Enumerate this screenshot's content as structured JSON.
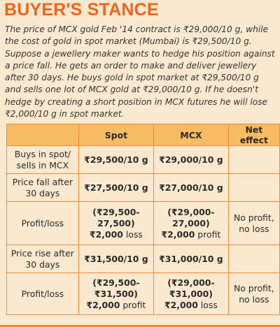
{
  "title": "BUYER'S STANCE",
  "intro": "The price of MCX gold Feb '14 contract is ₹29,000/10 g, while the cost of gold in spot market (Mumbai) is ₹29,500/10 g. Suppose a jewellery maker wants to hedge his position against a price fall. He gets an order to make and deliver jewellery after 30 days. He buys gold in spot market at ₹29,500/10 g and sells one lot of MCX gold at ₹29,000/10 g. If he doesn't hedge by creating a short position in MCX futures he will lose ₹2,000/10 g in spot market.",
  "table": {
    "headers": [
      "",
      "Spot",
      "MCX",
      "Net effect"
    ],
    "rows": [
      {
        "label": "Buys in spot/ sells in MCX",
        "spot": "₹29,500/10 g",
        "mcx": "₹29,000/10 g",
        "net": ""
      },
      {
        "label": "Price fall after 30 days",
        "spot": "₹27,500/10 g",
        "mcx": "₹27,000/10 g",
        "net": ""
      },
      {
        "label": "Profit/loss",
        "spot_line1": "(₹29,500-",
        "spot_line2": "27,500)",
        "spot_line3_amount": "₹2,000",
        "spot_line3_word": " loss",
        "mcx_line1": "(₹29,000-",
        "mcx_line2": "27,000)",
        "mcx_line3_amount": "₹2,000",
        "mcx_line3_word": " profit",
        "net": "No profit, no loss"
      },
      {
        "label": "Price rise after 30 days",
        "spot": "₹31,500/10 g",
        "mcx": "₹31,000/10 g",
        "net": ""
      },
      {
        "label": "Profit/loss",
        "spot_line1": "(₹29,500-",
        "spot_line2": "₹31,500)",
        "spot_line3_amount": "₹2,000",
        "spot_line3_word": " profit",
        "mcx_line1": "(₹29,000-",
        "mcx_line2": "₹31,000)",
        "mcx_line3_amount": "₹2,000",
        "mcx_line3_word": " loss",
        "net": "No profit, no loss"
      }
    ]
  },
  "colors": {
    "background": "#fbe9cf",
    "title": "#f0641e",
    "header_fill": "#f6bb63",
    "border": "#f08a3c"
  }
}
